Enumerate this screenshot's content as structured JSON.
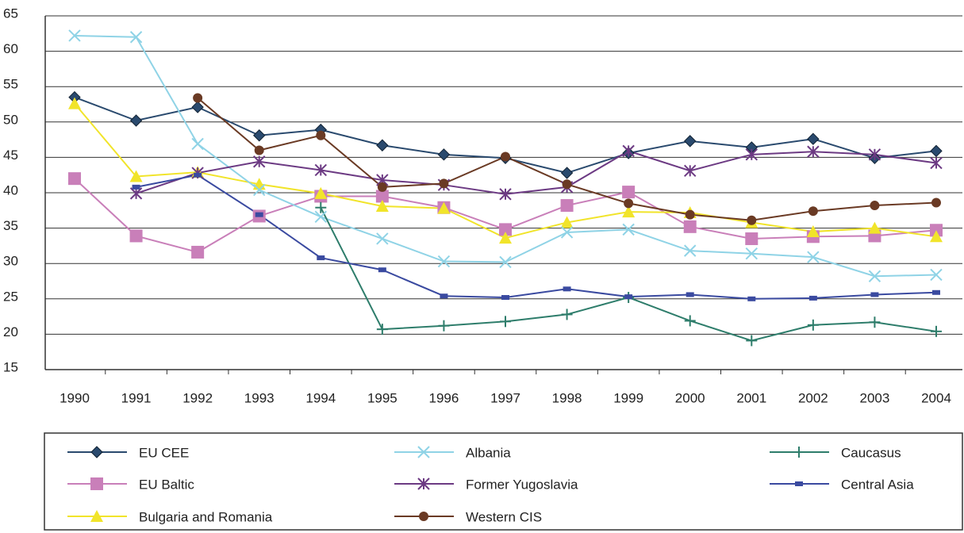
{
  "chart_data": {
    "type": "line",
    "categories": [
      "1990",
      "1991",
      "1992",
      "1993",
      "1994",
      "1995",
      "1996",
      "1997",
      "1998",
      "1999",
      "2000",
      "2001",
      "2002",
      "2003",
      "2004"
    ],
    "ylim": [
      15,
      65
    ],
    "yticks": [
      15,
      20,
      25,
      30,
      35,
      40,
      45,
      50,
      55,
      60,
      65
    ],
    "grid": true,
    "series": [
      {
        "name": "EU CEE",
        "color": "#2a4a6e",
        "marker": "diamond",
        "values": [
          53.5,
          50.2,
          52.1,
          48.1,
          48.9,
          46.7,
          45.4,
          44.9,
          42.8,
          45.6,
          47.3,
          46.4,
          47.6,
          44.9,
          45.9
        ]
      },
      {
        "name": "EU Baltic",
        "color": "#c97fb9",
        "marker": "square",
        "values": [
          42.0,
          33.9,
          31.6,
          36.7,
          39.5,
          39.5,
          37.9,
          34.8,
          38.2,
          40.1,
          35.2,
          33.5,
          33.8,
          33.9,
          34.7
        ]
      },
      {
        "name": "Bulgaria and Romania",
        "color": "#f1e42a",
        "marker": "triangle",
        "values": [
          52.6,
          42.3,
          42.9,
          41.2,
          39.9,
          38.1,
          37.8,
          33.6,
          35.8,
          37.3,
          37.2,
          35.8,
          34.5,
          35.0,
          33.8
        ]
      },
      {
        "name": "Albania",
        "color": "#8fd3e6",
        "marker": "x",
        "values": [
          62.2,
          62.0,
          46.9,
          40.4,
          36.6,
          33.5,
          30.3,
          30.2,
          34.4,
          34.8,
          31.8,
          31.4,
          30.9,
          28.2,
          28.4
        ]
      },
      {
        "name": "Former Yugoslavia",
        "color": "#6c3a83",
        "marker": "asterisk",
        "values": [
          null,
          39.9,
          42.8,
          44.4,
          43.2,
          41.8,
          41.1,
          39.8,
          40.8,
          45.9,
          43.1,
          45.4,
          45.8,
          45.4,
          44.2
        ]
      },
      {
        "name": "Western CIS",
        "color": "#6a3a24",
        "marker": "circle",
        "values": [
          null,
          null,
          53.4,
          46.0,
          48.1,
          40.8,
          41.3,
          45.1,
          41.2,
          38.5,
          36.9,
          36.1,
          37.4,
          38.2,
          38.6
        ]
      },
      {
        "name": "Caucasus",
        "color": "#2e7d6b",
        "marker": "plus",
        "values": [
          null,
          null,
          null,
          null,
          37.9,
          20.7,
          21.2,
          21.8,
          22.8,
          25.2,
          21.9,
          19.1,
          21.3,
          21.7,
          20.4
        ]
      },
      {
        "name": "Central Asia",
        "color": "#3a4aa0",
        "marker": "rect",
        "values": [
          null,
          40.8,
          42.5,
          36.9,
          30.8,
          29.1,
          25.4,
          25.2,
          26.4,
          25.3,
          25.6,
          25.0,
          25.1,
          25.6,
          25.9
        ]
      }
    ]
  }
}
